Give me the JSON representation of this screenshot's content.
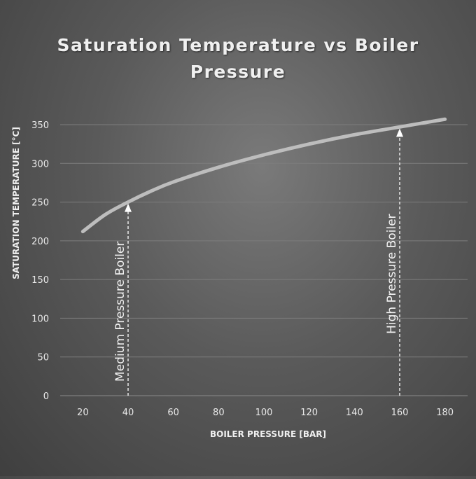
{
  "chart_data": {
    "type": "line",
    "title_lines": [
      "Saturation Temperature vs Boiler",
      "Pressure"
    ],
    "xlabel": "BOILER PRESSURE [BAR]",
    "ylabel": "SATURATION TEMPERATURE [°C]",
    "xlim": [
      10,
      190
    ],
    "ylim": [
      0,
      350
    ],
    "x_ticks": [
      20,
      40,
      60,
      80,
      100,
      120,
      140,
      160,
      180
    ],
    "y_ticks": [
      0,
      50,
      100,
      150,
      200,
      250,
      300,
      350
    ],
    "grid": "horizontal",
    "series": [
      {
        "x": [
          20,
          30,
          40,
          50,
          60,
          80,
          100,
          120,
          140,
          160,
          180
        ],
        "y": [
          212,
          234,
          250,
          264,
          276,
          295,
          311,
          325,
          337,
          347,
          357
        ],
        "color": "#bdbdbd"
      }
    ],
    "annotations": [
      {
        "label": "Medium Pressure Boiler",
        "x": 40,
        "y": 250
      },
      {
        "label": "High Pressure Boiler",
        "x": 160,
        "y": 347
      }
    ]
  }
}
